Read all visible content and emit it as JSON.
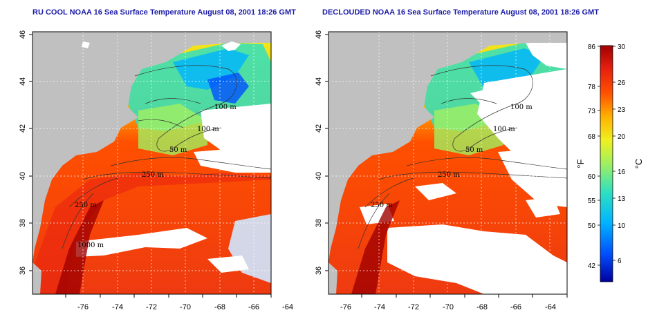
{
  "panels": [
    {
      "title": "RU COOL NOAA 16 Sea Surface Temperature August 08, 2001 18:26 GMT",
      "cloud_masked": false
    },
    {
      "title": "DECLOUDED NOAA 16 Sea Surface Temperature August 08, 2001 18:26 GMT",
      "cloud_masked": true
    }
  ],
  "map": {
    "x_ticks": [
      "-76",
      "-74",
      "-72",
      "-70",
      "-68",
      "-66",
      "-64"
    ],
    "y_ticks": [
      "46",
      "44",
      "42",
      "40",
      "38",
      "36"
    ],
    "lon_range": [
      -77,
      -63
    ],
    "lat_range": [
      35,
      46
    ],
    "contour_labels": [
      "100 m",
      "100 m",
      "50 m",
      "250 m",
      "250 m",
      "1000 m"
    ],
    "land_color": "#c0c0c0",
    "cloud_color": "#ffffff",
    "grid": "dotted"
  },
  "colorbar": {
    "fahrenheit_labels": [
      "86",
      "78",
      "73",
      "68",
      "60",
      "55",
      "50",
      "42"
    ],
    "celsius_labels": [
      "30",
      "26",
      "23",
      "20",
      "16",
      "13",
      "10",
      "6"
    ],
    "f_unit": "°F",
    "c_unit": "°C",
    "gradient": [
      "#0000a0",
      "#0050ff",
      "#00b4ff",
      "#30e0c0",
      "#a0f060",
      "#f0f020",
      "#ffb000",
      "#ff5000",
      "#e82010",
      "#a00000"
    ]
  }
}
